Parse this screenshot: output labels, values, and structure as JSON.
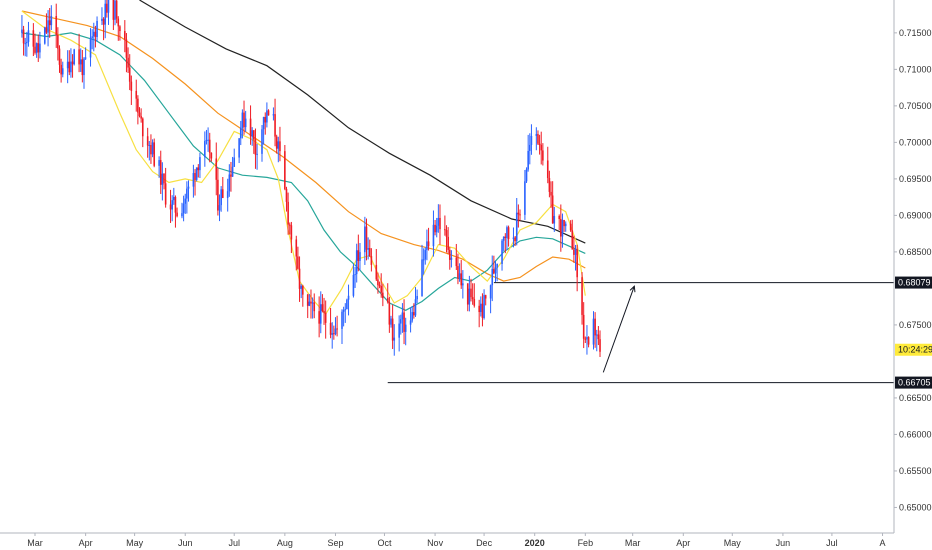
{
  "chart_data": {
    "type": "candlestick",
    "title": "",
    "xlabel": "",
    "ylabel": "",
    "ylim": [
      0.6465,
      0.7195
    ],
    "grid": false,
    "legend": "none",
    "x_ticks": [
      {
        "day": 8,
        "label": "Mar"
      },
      {
        "day": 39,
        "label": "Apr"
      },
      {
        "day": 69,
        "label": "May"
      },
      {
        "day": 100,
        "label": "Jun"
      },
      {
        "day": 130,
        "label": "Jul"
      },
      {
        "day": 161,
        "label": "Aug"
      },
      {
        "day": 192,
        "label": "Sep"
      },
      {
        "day": 222,
        "label": "Oct"
      },
      {
        "day": 253,
        "label": "Nov"
      },
      {
        "day": 283,
        "label": "Dec"
      },
      {
        "day": 314,
        "label": "2020"
      },
      {
        "day": 345,
        "label": "Feb"
      },
      {
        "day": 374,
        "label": "Mar"
      },
      {
        "day": 405,
        "label": "Apr"
      },
      {
        "day": 435,
        "label": "May"
      },
      {
        "day": 466,
        "label": "Jun"
      },
      {
        "day": 496,
        "label": "Jul"
      },
      {
        "day": 527,
        "label": "A"
      }
    ],
    "y_ticks": [
      {
        "value": 0.715,
        "label": "0.71500"
      },
      {
        "value": 0.71,
        "label": "0.71000"
      },
      {
        "value": 0.705,
        "label": "0.70500"
      },
      {
        "value": 0.7,
        "label": "0.70000"
      },
      {
        "value": 0.695,
        "label": "0.69500"
      },
      {
        "value": 0.69,
        "label": "0.69000"
      },
      {
        "value": 0.685,
        "label": "0.68500"
      },
      {
        "value": 0.675,
        "label": "0.67500"
      },
      {
        "value": 0.665,
        "label": "0.66500"
      },
      {
        "value": 0.66,
        "label": "0.66000"
      },
      {
        "value": 0.655,
        "label": "0.65500"
      },
      {
        "value": 0.65,
        "label": "0.65000"
      }
    ],
    "price_tags": [
      {
        "value": 0.6808,
        "label": "0.68079",
        "style": "dark"
      },
      {
        "value": 0.6716,
        "label": "10:24:29",
        "style": "highlight"
      },
      {
        "value": 0.6671,
        "label": "0.66705",
        "style": "dark"
      }
    ],
    "horizontal_levels": [
      {
        "value": 0.6808,
        "from_day": 289,
        "to_day": 999
      },
      {
        "value": 0.6671,
        "from_day": 224,
        "to_day": 999
      }
    ],
    "arrow": {
      "from_day": 356,
      "from_value": 0.6685,
      "to_day": 375,
      "to_value": 0.6803
    },
    "colors": {
      "up": "#2962ff",
      "down": "#ef1c24",
      "ma_black": "#222222",
      "ma_orange": "#f5921e",
      "ma_teal": "#26a69a",
      "ma_yellow": "#f7e042",
      "tag_dark": "#131722",
      "tag_highlight": "#ffeb3b"
    },
    "moving_averages": [
      {
        "color": "ma_black",
        "points": [
          [
            72,
            0.7195
          ],
          [
            100,
            0.7158
          ],
          [
            125,
            0.7128
          ],
          [
            150,
            0.7105
          ],
          [
            175,
            0.7065
          ],
          [
            200,
            0.702
          ],
          [
            225,
            0.6985
          ],
          [
            250,
            0.6955
          ],
          [
            275,
            0.692
          ],
          [
            300,
            0.6895
          ],
          [
            322,
            0.6885
          ],
          [
            345,
            0.6862
          ]
        ]
      },
      {
        "color": "ma_orange",
        "points": [
          [
            0,
            0.718
          ],
          [
            20,
            0.717
          ],
          [
            40,
            0.716
          ],
          [
            60,
            0.7145
          ],
          [
            80,
            0.7115
          ],
          [
            100,
            0.708
          ],
          [
            120,
            0.704
          ],
          [
            140,
            0.701
          ],
          [
            160,
            0.698
          ],
          [
            180,
            0.6945
          ],
          [
            200,
            0.6905
          ],
          [
            220,
            0.6875
          ],
          [
            240,
            0.686
          ],
          [
            255,
            0.6852
          ],
          [
            270,
            0.684
          ],
          [
            285,
            0.682
          ],
          [
            295,
            0.681
          ],
          [
            305,
            0.6815
          ],
          [
            315,
            0.683
          ],
          [
            325,
            0.6843
          ],
          [
            335,
            0.684
          ],
          [
            345,
            0.6828
          ]
        ]
      },
      {
        "color": "ma_teal",
        "points": [
          [
            0,
            0.715
          ],
          [
            15,
            0.7145
          ],
          [
            30,
            0.715
          ],
          [
            45,
            0.714
          ],
          [
            60,
            0.712
          ],
          [
            75,
            0.7085
          ],
          [
            90,
            0.704
          ],
          [
            105,
            0.6995
          ],
          [
            120,
            0.6965
          ],
          [
            135,
            0.6955
          ],
          [
            150,
            0.6952
          ],
          [
            165,
            0.6945
          ],
          [
            175,
            0.692
          ],
          [
            185,
            0.688
          ],
          [
            195,
            0.685
          ],
          [
            205,
            0.683
          ],
          [
            215,
            0.6805
          ],
          [
            225,
            0.678
          ],
          [
            235,
            0.677
          ],
          [
            245,
            0.6782
          ],
          [
            255,
            0.68
          ],
          [
            265,
            0.6815
          ],
          [
            275,
            0.681
          ],
          [
            285,
            0.6825
          ],
          [
            295,
            0.685
          ],
          [
            305,
            0.6865
          ],
          [
            315,
            0.687
          ],
          [
            325,
            0.6868
          ],
          [
            335,
            0.6858
          ],
          [
            345,
            0.6848
          ]
        ]
      },
      {
        "color": "ma_yellow",
        "points": [
          [
            0,
            0.718
          ],
          [
            15,
            0.7155
          ],
          [
            30,
            0.714
          ],
          [
            45,
            0.712
          ],
          [
            60,
            0.704
          ],
          [
            70,
            0.699
          ],
          [
            80,
            0.696
          ],
          [
            90,
            0.6945
          ],
          [
            100,
            0.695
          ],
          [
            110,
            0.6945
          ],
          [
            120,
            0.6975
          ],
          [
            130,
            0.7015
          ],
          [
            140,
            0.7005
          ],
          [
            150,
            0.699
          ],
          [
            157,
            0.695
          ],
          [
            163,
            0.688
          ],
          [
            170,
            0.681
          ],
          [
            178,
            0.6785
          ],
          [
            186,
            0.6765
          ],
          [
            196,
            0.68
          ],
          [
            205,
            0.684
          ],
          [
            213,
            0.6845
          ],
          [
            220,
            0.681
          ],
          [
            228,
            0.678
          ],
          [
            236,
            0.679
          ],
          [
            245,
            0.6815
          ],
          [
            255,
            0.686
          ],
          [
            265,
            0.6855
          ],
          [
            275,
            0.683
          ],
          [
            285,
            0.681
          ],
          [
            295,
            0.684
          ],
          [
            305,
            0.688
          ],
          [
            315,
            0.689
          ],
          [
            325,
            0.6915
          ],
          [
            333,
            0.6905
          ],
          [
            340,
            0.686
          ],
          [
            345,
            0.679
          ]
        ]
      }
    ],
    "anchors": [
      [
        0,
        0.715
      ],
      [
        10,
        0.7125
      ],
      [
        18,
        0.717
      ],
      [
        25,
        0.709
      ],
      [
        32,
        0.7125
      ],
      [
        38,
        0.71
      ],
      [
        46,
        0.7165
      ],
      [
        54,
        0.7185
      ],
      [
        58,
        0.718
      ],
      [
        62,
        0.7145
      ],
      [
        67,
        0.708
      ],
      [
        72,
        0.703
      ],
      [
        77,
        0.7005
      ],
      [
        83,
        0.697
      ],
      [
        89,
        0.692
      ],
      [
        96,
        0.6905
      ],
      [
        103,
        0.694
      ],
      [
        110,
        0.699
      ],
      [
        115,
        0.699
      ],
      [
        120,
        0.692
      ],
      [
        125,
        0.694
      ],
      [
        130,
        0.698
      ],
      [
        133,
        0.702
      ],
      [
        138,
        0.704
      ],
      [
        143,
        0.699
      ],
      [
        148,
        0.703
      ],
      [
        153,
        0.704
      ],
      [
        157,
        0.699
      ],
      [
        163,
        0.69
      ],
      [
        168,
        0.683
      ],
      [
        173,
        0.677
      ],
      [
        180,
        0.677
      ],
      [
        187,
        0.6755
      ],
      [
        194,
        0.674
      ],
      [
        199,
        0.679
      ],
      [
        205,
        0.684
      ],
      [
        210,
        0.6875
      ],
      [
        214,
        0.6845
      ],
      [
        219,
        0.68
      ],
      [
        224,
        0.677
      ],
      [
        228,
        0.673
      ],
      [
        232,
        0.6755
      ],
      [
        237,
        0.6745
      ],
      [
        241,
        0.678
      ],
      [
        246,
        0.684
      ],
      [
        251,
        0.688
      ],
      [
        255,
        0.6895
      ],
      [
        259,
        0.687
      ],
      [
        264,
        0.684
      ],
      [
        270,
        0.68
      ],
      [
        276,
        0.678
      ],
      [
        282,
        0.677
      ],
      [
        286,
        0.68
      ],
      [
        290,
        0.6835
      ],
      [
        295,
        0.688
      ],
      [
        299,
        0.687
      ],
      [
        302,
        0.688
      ],
      [
        306,
        0.692
      ],
      [
        310,
        0.6985
      ],
      [
        314,
        0.7015
      ],
      [
        318,
        0.7
      ],
      [
        321,
        0.695
      ],
      [
        325,
        0.69
      ],
      [
        330,
        0.6885
      ],
      [
        335,
        0.687
      ],
      [
        338,
        0.686
      ],
      [
        341,
        0.68
      ],
      [
        344,
        0.674
      ],
      [
        347,
        0.671
      ],
      [
        349,
        0.675
      ],
      [
        352,
        0.674
      ],
      [
        354,
        0.6705
      ],
      [
        356,
        0.6685
      ]
    ],
    "day_range": [
      -5,
      538
    ],
    "seed": 11
  }
}
